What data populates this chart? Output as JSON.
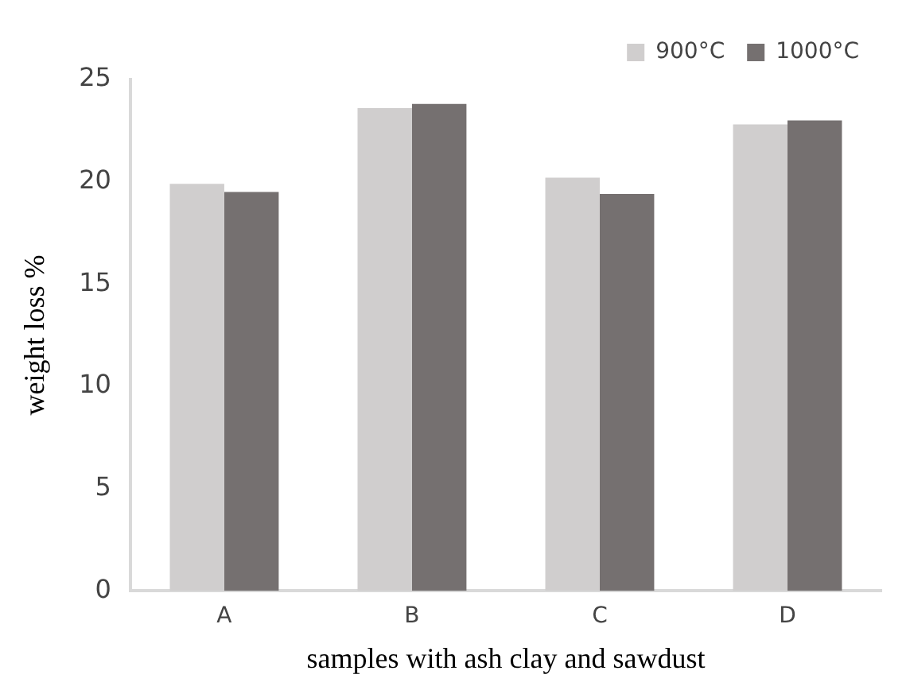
{
  "chart_data": {
    "type": "bar",
    "xlabel": "samples with ash clay and sawdust",
    "ylabel": "weight loss %",
    "categories": [
      "A",
      "B",
      "C",
      "D"
    ],
    "series": [
      {
        "name": "900°C",
        "color": "#d0cece",
        "values": [
          19.9,
          23.6,
          20.2,
          22.8
        ]
      },
      {
        "name": "1000°C",
        "color": "#757070",
        "values": [
          19.5,
          23.8,
          19.4,
          23.0
        ]
      }
    ],
    "ylim": [
      0,
      25
    ],
    "yticks": [
      0,
      5,
      10,
      15,
      20,
      25
    ],
    "grid": false,
    "legend": "top right"
  }
}
